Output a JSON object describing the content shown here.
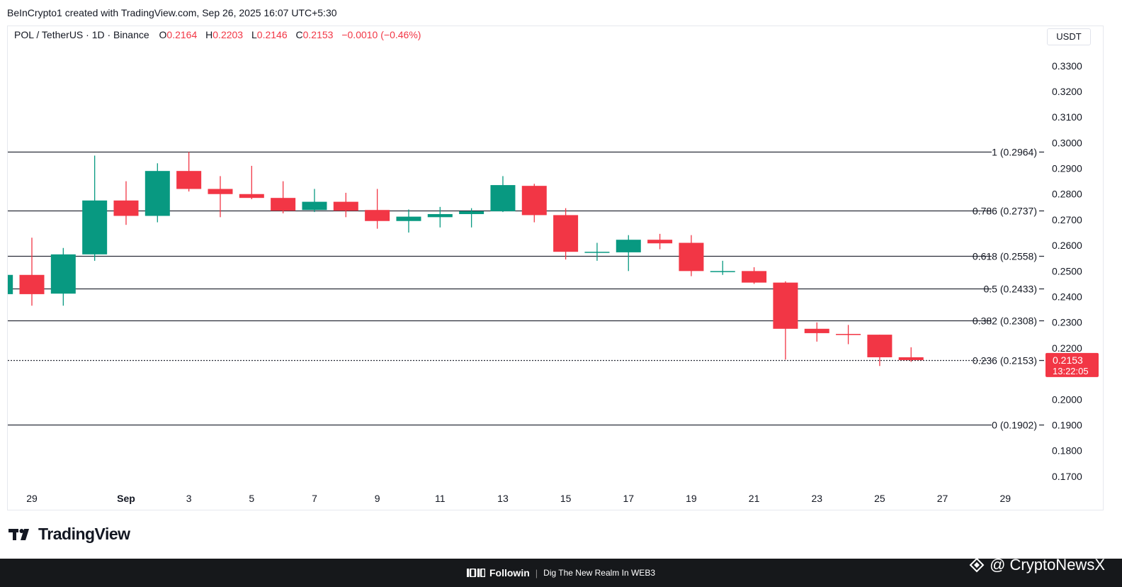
{
  "caption": "BeInCrypto1 created with TradingView.com, Sep 26, 2025 16:07 UTC+5:30",
  "legend": {
    "symbol": "POL / TetherUS · 1D · Binance",
    "open_label": "O",
    "open": "0.2164",
    "high_label": "H",
    "high": "0.2203",
    "low_label": "L",
    "low": "0.2146",
    "close_label": "C",
    "close": "0.2153",
    "change": "−0.0010 (−0.46%)"
  },
  "currency": "USDT",
  "logo_text": "TradingView",
  "footer": {
    "brand": "Followin",
    "separator": "|",
    "slogan": "Dig The New Realm In WEB3"
  },
  "watermark": "@ CryptoNewsX",
  "colors": {
    "up": "#089981",
    "down": "#f23645",
    "level_line": "#2a2e39",
    "text": "#131722"
  },
  "chart_data": {
    "type": "candlestick",
    "ylim": [
      0.165,
      0.3385
    ],
    "y_ticks": [
      0.33,
      0.32,
      0.31,
      0.3,
      0.29,
      0.28,
      0.27,
      0.26,
      0.25,
      0.24,
      0.23,
      0.22,
      0.2,
      0.19,
      0.18,
      0.17
    ],
    "y_tick_labels": [
      "0.3300",
      "0.3200",
      "0.3100",
      "0.3000",
      "0.2900",
      "0.2800",
      "0.2700",
      "0.2600",
      "0.2500",
      "0.2400",
      "0.2300",
      "0.2200",
      "0.2000",
      "0.1900",
      "0.1800",
      "0.1700"
    ],
    "x_ticks": [
      {
        "label": "29",
        "date": "2025-08-29"
      },
      {
        "label": "Sep",
        "date": "2025-09-01"
      },
      {
        "label": "3",
        "date": "2025-09-03"
      },
      {
        "label": "5",
        "date": "2025-09-05"
      },
      {
        "label": "7",
        "date": "2025-09-07"
      },
      {
        "label": "9",
        "date": "2025-09-09"
      },
      {
        "label": "11",
        "date": "2025-09-11"
      },
      {
        "label": "13",
        "date": "2025-09-13"
      },
      {
        "label": "15",
        "date": "2025-09-15"
      },
      {
        "label": "17",
        "date": "2025-09-17"
      },
      {
        "label": "19",
        "date": "2025-09-19"
      },
      {
        "label": "21",
        "date": "2025-09-21"
      },
      {
        "label": "23",
        "date": "2025-09-23"
      },
      {
        "label": "25",
        "date": "2025-09-25"
      },
      {
        "label": "27",
        "date": "2025-09-27"
      },
      {
        "label": "29",
        "date": "2025-09-29"
      }
    ],
    "candles": [
      {
        "date": "2025-08-28",
        "o": 0.241,
        "h": 0.249,
        "l": 0.24,
        "c": 0.2485
      },
      {
        "date": "2025-08-29",
        "o": 0.2485,
        "h": 0.263,
        "l": 0.2365,
        "c": 0.241
      },
      {
        "date": "2025-08-30",
        "o": 0.2412,
        "h": 0.259,
        "l": 0.2365,
        "c": 0.2565
      },
      {
        "date": "2025-08-31",
        "o": 0.2565,
        "h": 0.295,
        "l": 0.254,
        "c": 0.2775
      },
      {
        "date": "2025-09-01",
        "o": 0.2775,
        "h": 0.285,
        "l": 0.268,
        "c": 0.2715
      },
      {
        "date": "2025-09-02",
        "o": 0.2715,
        "h": 0.292,
        "l": 0.269,
        "c": 0.289
      },
      {
        "date": "2025-09-03",
        "o": 0.289,
        "h": 0.2964,
        "l": 0.281,
        "c": 0.282
      },
      {
        "date": "2025-09-04",
        "o": 0.282,
        "h": 0.287,
        "l": 0.271,
        "c": 0.28
      },
      {
        "date": "2025-09-05",
        "o": 0.28,
        "h": 0.291,
        "l": 0.278,
        "c": 0.2785
      },
      {
        "date": "2025-09-06",
        "o": 0.2785,
        "h": 0.285,
        "l": 0.2725,
        "c": 0.2735
      },
      {
        "date": "2025-09-07",
        "o": 0.2738,
        "h": 0.282,
        "l": 0.273,
        "c": 0.277
      },
      {
        "date": "2025-09-08",
        "o": 0.277,
        "h": 0.2805,
        "l": 0.271,
        "c": 0.2735
      },
      {
        "date": "2025-09-09",
        "o": 0.2738,
        "h": 0.282,
        "l": 0.2665,
        "c": 0.2695
      },
      {
        "date": "2025-09-10",
        "o": 0.2695,
        "h": 0.274,
        "l": 0.265,
        "c": 0.2712
      },
      {
        "date": "2025-09-11",
        "o": 0.271,
        "h": 0.275,
        "l": 0.267,
        "c": 0.2722
      },
      {
        "date": "2025-09-12",
        "o": 0.2722,
        "h": 0.2745,
        "l": 0.267,
        "c": 0.2733
      },
      {
        "date": "2025-09-13",
        "o": 0.2733,
        "h": 0.287,
        "l": 0.273,
        "c": 0.2835
      },
      {
        "date": "2025-09-14",
        "o": 0.2832,
        "h": 0.284,
        "l": 0.269,
        "c": 0.2718
      },
      {
        "date": "2025-09-15",
        "o": 0.2718,
        "h": 0.2745,
        "l": 0.2545,
        "c": 0.2575
      },
      {
        "date": "2025-09-16",
        "o": 0.2575,
        "h": 0.261,
        "l": 0.254,
        "c": 0.2575
      },
      {
        "date": "2025-09-17",
        "o": 0.2573,
        "h": 0.264,
        "l": 0.25,
        "c": 0.2622
      },
      {
        "date": "2025-09-18",
        "o": 0.2622,
        "h": 0.2645,
        "l": 0.2585,
        "c": 0.2608
      },
      {
        "date": "2025-09-19",
        "o": 0.261,
        "h": 0.264,
        "l": 0.248,
        "c": 0.25
      },
      {
        "date": "2025-09-20",
        "o": 0.25,
        "h": 0.254,
        "l": 0.2485,
        "c": 0.25
      },
      {
        "date": "2025-09-21",
        "o": 0.25,
        "h": 0.2515,
        "l": 0.245,
        "c": 0.2455
      },
      {
        "date": "2025-09-22",
        "o": 0.2455,
        "h": 0.246,
        "l": 0.2155,
        "c": 0.2275
      },
      {
        "date": "2025-09-23",
        "o": 0.2275,
        "h": 0.23,
        "l": 0.2225,
        "c": 0.2258
      },
      {
        "date": "2025-09-24",
        "o": 0.2255,
        "h": 0.229,
        "l": 0.2215,
        "c": 0.2252
      },
      {
        "date": "2025-09-25",
        "o": 0.2252,
        "h": 0.2252,
        "l": 0.213,
        "c": 0.2164
      },
      {
        "date": "2025-09-26",
        "o": 0.2164,
        "h": 0.2203,
        "l": 0.2146,
        "c": 0.2153
      }
    ],
    "fib_levels": [
      {
        "label": "1 (0.2964)",
        "value": 0.2964
      },
      {
        "label": "0.786 (0.2737)",
        "value": 0.2737
      },
      {
        "label": "0.618 (0.2558)",
        "value": 0.2558
      },
      {
        "label": "0.5 (0.2433)",
        "value": 0.2433
      },
      {
        "label": "0.382 (0.2308)",
        "value": 0.2308
      },
      {
        "label": "0.236 (0.2153)",
        "value": 0.2153
      },
      {
        "label": "0 (0.1902)",
        "value": 0.1902
      }
    ],
    "current_price": {
      "value": 0.2153,
      "label": "0.2153",
      "countdown": "13:22:05"
    }
  }
}
